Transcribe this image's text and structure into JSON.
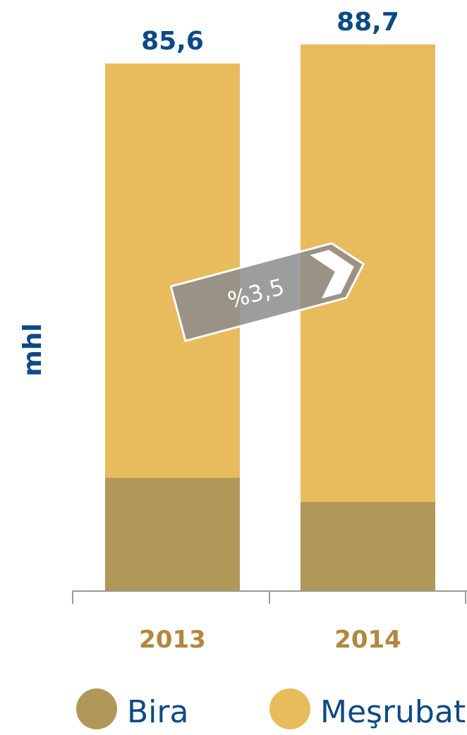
{
  "chart_data": {
    "type": "bar",
    "stacked": true,
    "categories": [
      "2013",
      "2014"
    ],
    "series": [
      {
        "name": "Bira",
        "values": [
          18.4,
          14.5
        ],
        "color": "#b09858"
      },
      {
        "name": "Meşrubat",
        "values": [
          67.2,
          74.2
        ],
        "color": "#e8bb5d"
      }
    ],
    "totals": [
      "85,6",
      "88,7"
    ],
    "total_values": [
      85.6,
      88.7
    ],
    "ylabel": "mhl",
    "ylim": [
      0,
      88.7
    ],
    "grid": false,
    "legend_position": "bottom",
    "growth_badge": {
      "text": "%3,5",
      "icon": "chevron-right-icon",
      "color": "#8c8c8c"
    }
  }
}
